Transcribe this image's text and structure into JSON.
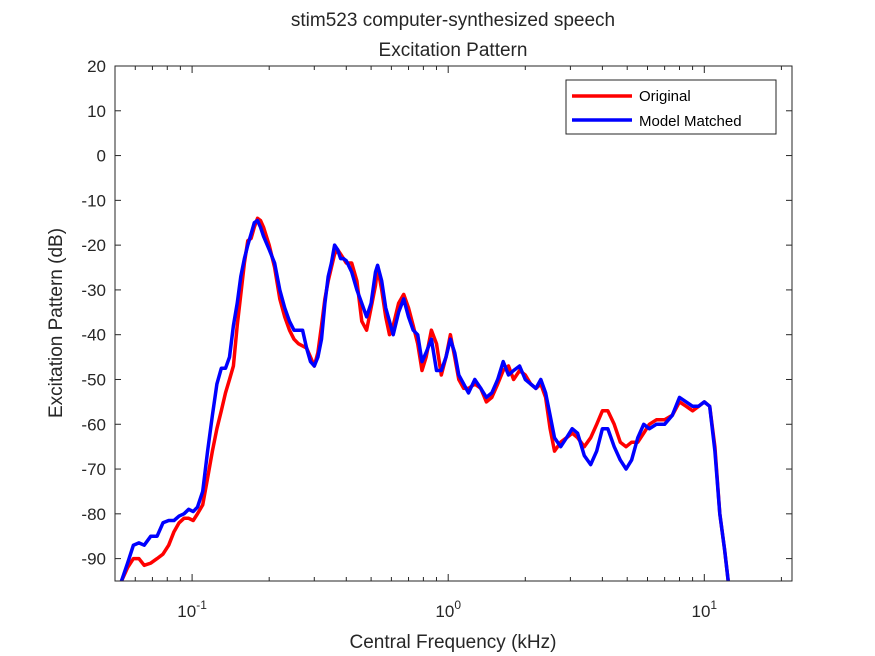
{
  "chart_data": {
    "type": "line",
    "title": [
      "stim523 computer-synthesized speech",
      "Excitation Pattern"
    ],
    "xlabel": "Central Frequency (kHz)",
    "ylabel": "Excitation Pattern (dB)",
    "xscale": "log",
    "xlim": [
      0.05,
      22
    ],
    "ylim": [
      -95,
      20
    ],
    "xticks": [
      {
        "value": 0.1,
        "base": "10",
        "exp": "-1"
      },
      {
        "value": 1,
        "base": "10",
        "exp": "0"
      },
      {
        "value": 10,
        "base": "10",
        "exp": "1"
      }
    ],
    "yticks": [
      20,
      10,
      0,
      -10,
      -20,
      -30,
      -40,
      -50,
      -60,
      -70,
      -80,
      -90
    ],
    "grid": false,
    "legend": {
      "placement": "top-right"
    },
    "series": [
      {
        "name": "Original",
        "color": "#ff0000",
        "points": [
          [
            0.053,
            -95
          ],
          [
            0.056,
            -92
          ],
          [
            0.059,
            -90
          ],
          [
            0.062,
            -90
          ],
          [
            0.065,
            -91.5
          ],
          [
            0.069,
            -91
          ],
          [
            0.073,
            -90
          ],
          [
            0.077,
            -89
          ],
          [
            0.081,
            -87
          ],
          [
            0.085,
            -84
          ],
          [
            0.089,
            -82
          ],
          [
            0.093,
            -81
          ],
          [
            0.097,
            -81
          ],
          [
            0.101,
            -81.5
          ],
          [
            0.105,
            -80
          ],
          [
            0.11,
            -78
          ],
          [
            0.115,
            -72
          ],
          [
            0.12,
            -66
          ],
          [
            0.125,
            -61
          ],
          [
            0.13,
            -57
          ],
          [
            0.135,
            -53
          ],
          [
            0.14,
            -50
          ],
          [
            0.145,
            -47
          ],
          [
            0.15,
            -38
          ],
          [
            0.155,
            -31
          ],
          [
            0.16,
            -24
          ],
          [
            0.165,
            -19
          ],
          [
            0.17,
            -18.5
          ],
          [
            0.175,
            -16
          ],
          [
            0.18,
            -14
          ],
          [
            0.185,
            -14.5
          ],
          [
            0.19,
            -16
          ],
          [
            0.2,
            -20
          ],
          [
            0.21,
            -25
          ],
          [
            0.22,
            -32
          ],
          [
            0.23,
            -36
          ],
          [
            0.24,
            -39
          ],
          [
            0.25,
            -41
          ],
          [
            0.26,
            -42
          ],
          [
            0.27,
            -42.5
          ],
          [
            0.28,
            -43
          ],
          [
            0.29,
            -45
          ],
          [
            0.3,
            -47
          ],
          [
            0.31,
            -44
          ],
          [
            0.32,
            -38
          ],
          [
            0.33,
            -32
          ],
          [
            0.34,
            -28
          ],
          [
            0.35,
            -25
          ],
          [
            0.36,
            -22
          ],
          [
            0.37,
            -21
          ],
          [
            0.38,
            -22
          ],
          [
            0.39,
            -23
          ],
          [
            0.4,
            -24
          ],
          [
            0.42,
            -24
          ],
          [
            0.44,
            -28
          ],
          [
            0.46,
            -37
          ],
          [
            0.48,
            -39
          ],
          [
            0.5,
            -34
          ],
          [
            0.52,
            -29
          ],
          [
            0.53,
            -25
          ],
          [
            0.55,
            -30
          ],
          [
            0.57,
            -36
          ],
          [
            0.59,
            -40
          ],
          [
            0.61,
            -38
          ],
          [
            0.64,
            -33
          ],
          [
            0.67,
            -31
          ],
          [
            0.7,
            -34
          ],
          [
            0.73,
            -38
          ],
          [
            0.76,
            -42
          ],
          [
            0.79,
            -48
          ],
          [
            0.82,
            -45
          ],
          [
            0.86,
            -39
          ],
          [
            0.9,
            -42
          ],
          [
            0.94,
            -49
          ],
          [
            0.98,
            -45
          ],
          [
            1.02,
            -40
          ],
          [
            1.06,
            -45
          ],
          [
            1.1,
            -50
          ],
          [
            1.15,
            -52
          ],
          [
            1.2,
            -52
          ],
          [
            1.27,
            -51
          ],
          [
            1.34,
            -52
          ],
          [
            1.41,
            -55
          ],
          [
            1.48,
            -54
          ],
          [
            1.56,
            -51
          ],
          [
            1.64,
            -48
          ],
          [
            1.72,
            -47
          ],
          [
            1.8,
            -50
          ],
          [
            1.9,
            -48
          ],
          [
            2.0,
            -49
          ],
          [
            2.1,
            -51
          ],
          [
            2.2,
            -52
          ],
          [
            2.3,
            -51
          ],
          [
            2.4,
            -54
          ],
          [
            2.5,
            -61
          ],
          [
            2.6,
            -66
          ],
          [
            2.75,
            -64
          ],
          [
            2.9,
            -63
          ],
          [
            3.05,
            -62
          ],
          [
            3.2,
            -63
          ],
          [
            3.4,
            -65
          ],
          [
            3.6,
            -63
          ],
          [
            3.8,
            -60
          ],
          [
            4.0,
            -57
          ],
          [
            4.2,
            -57
          ],
          [
            4.45,
            -60
          ],
          [
            4.7,
            -64
          ],
          [
            4.95,
            -65
          ],
          [
            5.2,
            -64
          ],
          [
            5.5,
            -64
          ],
          [
            5.8,
            -62
          ],
          [
            6.1,
            -60
          ],
          [
            6.5,
            -59
          ],
          [
            7.0,
            -59
          ],
          [
            7.5,
            -58
          ],
          [
            8.0,
            -55
          ],
          [
            8.5,
            -56
          ],
          [
            9.0,
            -57
          ],
          [
            9.5,
            -56
          ],
          [
            10.0,
            -55
          ],
          [
            10.5,
            -56
          ],
          [
            11.0,
            -65
          ],
          [
            11.5,
            -80
          ],
          [
            12.0,
            -88
          ],
          [
            12.4,
            -95
          ]
        ]
      },
      {
        "name": "Model Matched",
        "color": "#0000ff",
        "points": [
          [
            0.053,
            -95
          ],
          [
            0.056,
            -91
          ],
          [
            0.059,
            -87
          ],
          [
            0.062,
            -86.5
          ],
          [
            0.065,
            -87
          ],
          [
            0.069,
            -85
          ],
          [
            0.073,
            -85
          ],
          [
            0.077,
            -82
          ],
          [
            0.081,
            -81.5
          ],
          [
            0.085,
            -81.5
          ],
          [
            0.089,
            -80.5
          ],
          [
            0.093,
            -80
          ],
          [
            0.097,
            -79
          ],
          [
            0.101,
            -79.5
          ],
          [
            0.105,
            -78.5
          ],
          [
            0.11,
            -75
          ],
          [
            0.115,
            -66
          ],
          [
            0.12,
            -58
          ],
          [
            0.125,
            -51
          ],
          [
            0.13,
            -47.5
          ],
          [
            0.135,
            -47.5
          ],
          [
            0.14,
            -45
          ],
          [
            0.145,
            -38
          ],
          [
            0.15,
            -33
          ],
          [
            0.155,
            -27
          ],
          [
            0.16,
            -23
          ],
          [
            0.165,
            -20
          ],
          [
            0.17,
            -17.5
          ],
          [
            0.175,
            -15
          ],
          [
            0.18,
            -14.5
          ],
          [
            0.185,
            -16
          ],
          [
            0.19,
            -18
          ],
          [
            0.2,
            -21
          ],
          [
            0.21,
            -24
          ],
          [
            0.22,
            -30
          ],
          [
            0.23,
            -34
          ],
          [
            0.24,
            -37
          ],
          [
            0.25,
            -39
          ],
          [
            0.26,
            -39
          ],
          [
            0.27,
            -39
          ],
          [
            0.28,
            -43
          ],
          [
            0.29,
            -46
          ],
          [
            0.3,
            -47
          ],
          [
            0.31,
            -45
          ],
          [
            0.32,
            -41
          ],
          [
            0.33,
            -33
          ],
          [
            0.34,
            -27
          ],
          [
            0.35,
            -24
          ],
          [
            0.36,
            -20
          ],
          [
            0.37,
            -21
          ],
          [
            0.38,
            -23
          ],
          [
            0.39,
            -23
          ],
          [
            0.4,
            -23.5
          ],
          [
            0.42,
            -26
          ],
          [
            0.44,
            -30
          ],
          [
            0.46,
            -33
          ],
          [
            0.48,
            -36
          ],
          [
            0.5,
            -33
          ],
          [
            0.52,
            -26
          ],
          [
            0.53,
            -24.5
          ],
          [
            0.55,
            -28
          ],
          [
            0.57,
            -34
          ],
          [
            0.59,
            -37
          ],
          [
            0.61,
            -40
          ],
          [
            0.64,
            -35
          ],
          [
            0.67,
            -32
          ],
          [
            0.7,
            -36
          ],
          [
            0.73,
            -39
          ],
          [
            0.76,
            -40
          ],
          [
            0.79,
            -46
          ],
          [
            0.82,
            -44
          ],
          [
            0.86,
            -41
          ],
          [
            0.9,
            -48
          ],
          [
            0.94,
            -48
          ],
          [
            0.98,
            -45
          ],
          [
            1.02,
            -41
          ],
          [
            1.06,
            -44
          ],
          [
            1.1,
            -49
          ],
          [
            1.15,
            -51
          ],
          [
            1.2,
            -53
          ],
          [
            1.27,
            -50
          ],
          [
            1.34,
            -52
          ],
          [
            1.41,
            -54
          ],
          [
            1.48,
            -53
          ],
          [
            1.56,
            -50
          ],
          [
            1.64,
            -46
          ],
          [
            1.72,
            -49
          ],
          [
            1.8,
            -48
          ],
          [
            1.9,
            -47
          ],
          [
            2.0,
            -50
          ],
          [
            2.1,
            -51
          ],
          [
            2.2,
            -52
          ],
          [
            2.3,
            -50
          ],
          [
            2.4,
            -53
          ],
          [
            2.5,
            -58
          ],
          [
            2.6,
            -63
          ],
          [
            2.75,
            -65
          ],
          [
            2.9,
            -63
          ],
          [
            3.05,
            -61
          ],
          [
            3.2,
            -62
          ],
          [
            3.4,
            -67
          ],
          [
            3.6,
            -69
          ],
          [
            3.8,
            -66
          ],
          [
            4.0,
            -61
          ],
          [
            4.2,
            -61
          ],
          [
            4.45,
            -65
          ],
          [
            4.7,
            -68
          ],
          [
            4.95,
            -70
          ],
          [
            5.2,
            -68
          ],
          [
            5.5,
            -63
          ],
          [
            5.8,
            -60
          ],
          [
            6.1,
            -61
          ],
          [
            6.5,
            -60
          ],
          [
            7.0,
            -60
          ],
          [
            7.5,
            -58
          ],
          [
            8.0,
            -54
          ],
          [
            8.5,
            -55
          ],
          [
            9.0,
            -56
          ],
          [
            9.5,
            -56
          ],
          [
            10.0,
            -55
          ],
          [
            10.5,
            -56
          ],
          [
            11.0,
            -66
          ],
          [
            11.5,
            -80
          ],
          [
            12.0,
            -88
          ],
          [
            12.4,
            -95
          ]
        ]
      }
    ]
  }
}
